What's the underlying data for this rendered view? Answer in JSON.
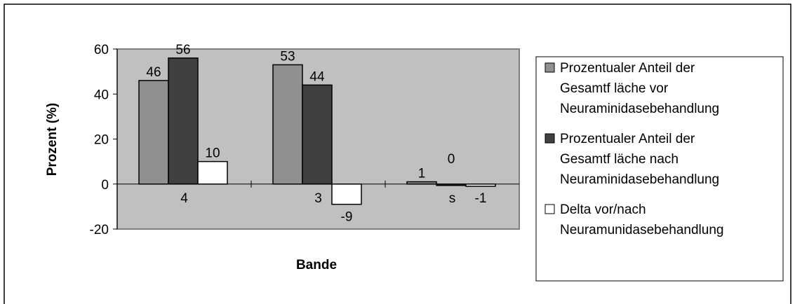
{
  "chart_data": {
    "type": "bar",
    "categories": [
      "4",
      "3",
      "s"
    ],
    "series": [
      {
        "name": "Prozentualer Anteil der Gesamtfläche vor Neuraminidasebehandlung",
        "values": [
          46,
          53,
          1
        ],
        "labels": [
          "46",
          "53",
          "1"
        ],
        "color": "#909090"
      },
      {
        "name": "Prozentualer Anteil der Gesamtfläche nach Neuraminidasebehandlung",
        "values": [
          56,
          44,
          0
        ],
        "labels": [
          "56",
          "44",
          "0"
        ],
        "color": "#404040"
      },
      {
        "name": "Delta vor/nach Neuramunidasebehandlung",
        "values": [
          10,
          -9,
          -1
        ],
        "labels": [
          "10",
          "-9",
          "-1"
        ],
        "color": "#ffffff"
      }
    ],
    "title": "",
    "xlabel": "Bande",
    "ylabel": "Prozent (%)",
    "ylim": [
      -20,
      60
    ],
    "yticks": [
      -20,
      0,
      20,
      40,
      60
    ],
    "ytick_labels": [
      "-20",
      "0",
      "20",
      "40",
      "60"
    ],
    "grid": false,
    "legend_position": "right",
    "legend": [
      [
        "Prozentualer Anteil der",
        "Gesamtf läche vor",
        "Neuraminidasebehandlung"
      ],
      [
        "Prozentualer Anteil der",
        "Gesamtf läche nach",
        "Neuraminidasebehandlung"
      ],
      [
        "Delta vor/nach",
        "Neuramunidasebehandlung"
      ]
    ],
    "plot_background": "#c0c0c0"
  }
}
